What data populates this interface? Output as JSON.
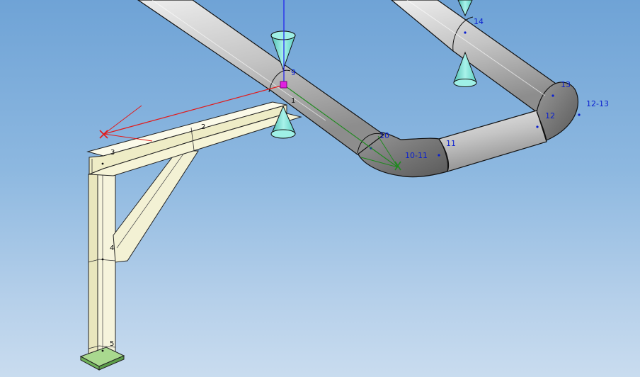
{
  "viewport": {
    "background_top": "#6fa3d6",
    "background_bottom": "#c9dcef"
  },
  "pipe_labels": {
    "n9": "9",
    "n10": "10",
    "n10_11": "10-11",
    "n11": "11",
    "n12": "12",
    "n13": "13",
    "n12_13": "12-13",
    "n14": "14"
  },
  "frame_labels": {
    "n1": "1",
    "n2": "2",
    "n3": "3",
    "n4": "4",
    "n5": "5"
  },
  "colors": {
    "pipe": "#c9c9c9",
    "steel": "#f3f1d4",
    "support_cone": "#7fe3d7",
    "base_plate": "#7fc26a",
    "axis_red": "#e21a1a",
    "axis_green": "#1f8a1f",
    "axis_blue": "#1a1af0",
    "marker": "#e020e0",
    "label_blue": "#0a1fd0"
  }
}
